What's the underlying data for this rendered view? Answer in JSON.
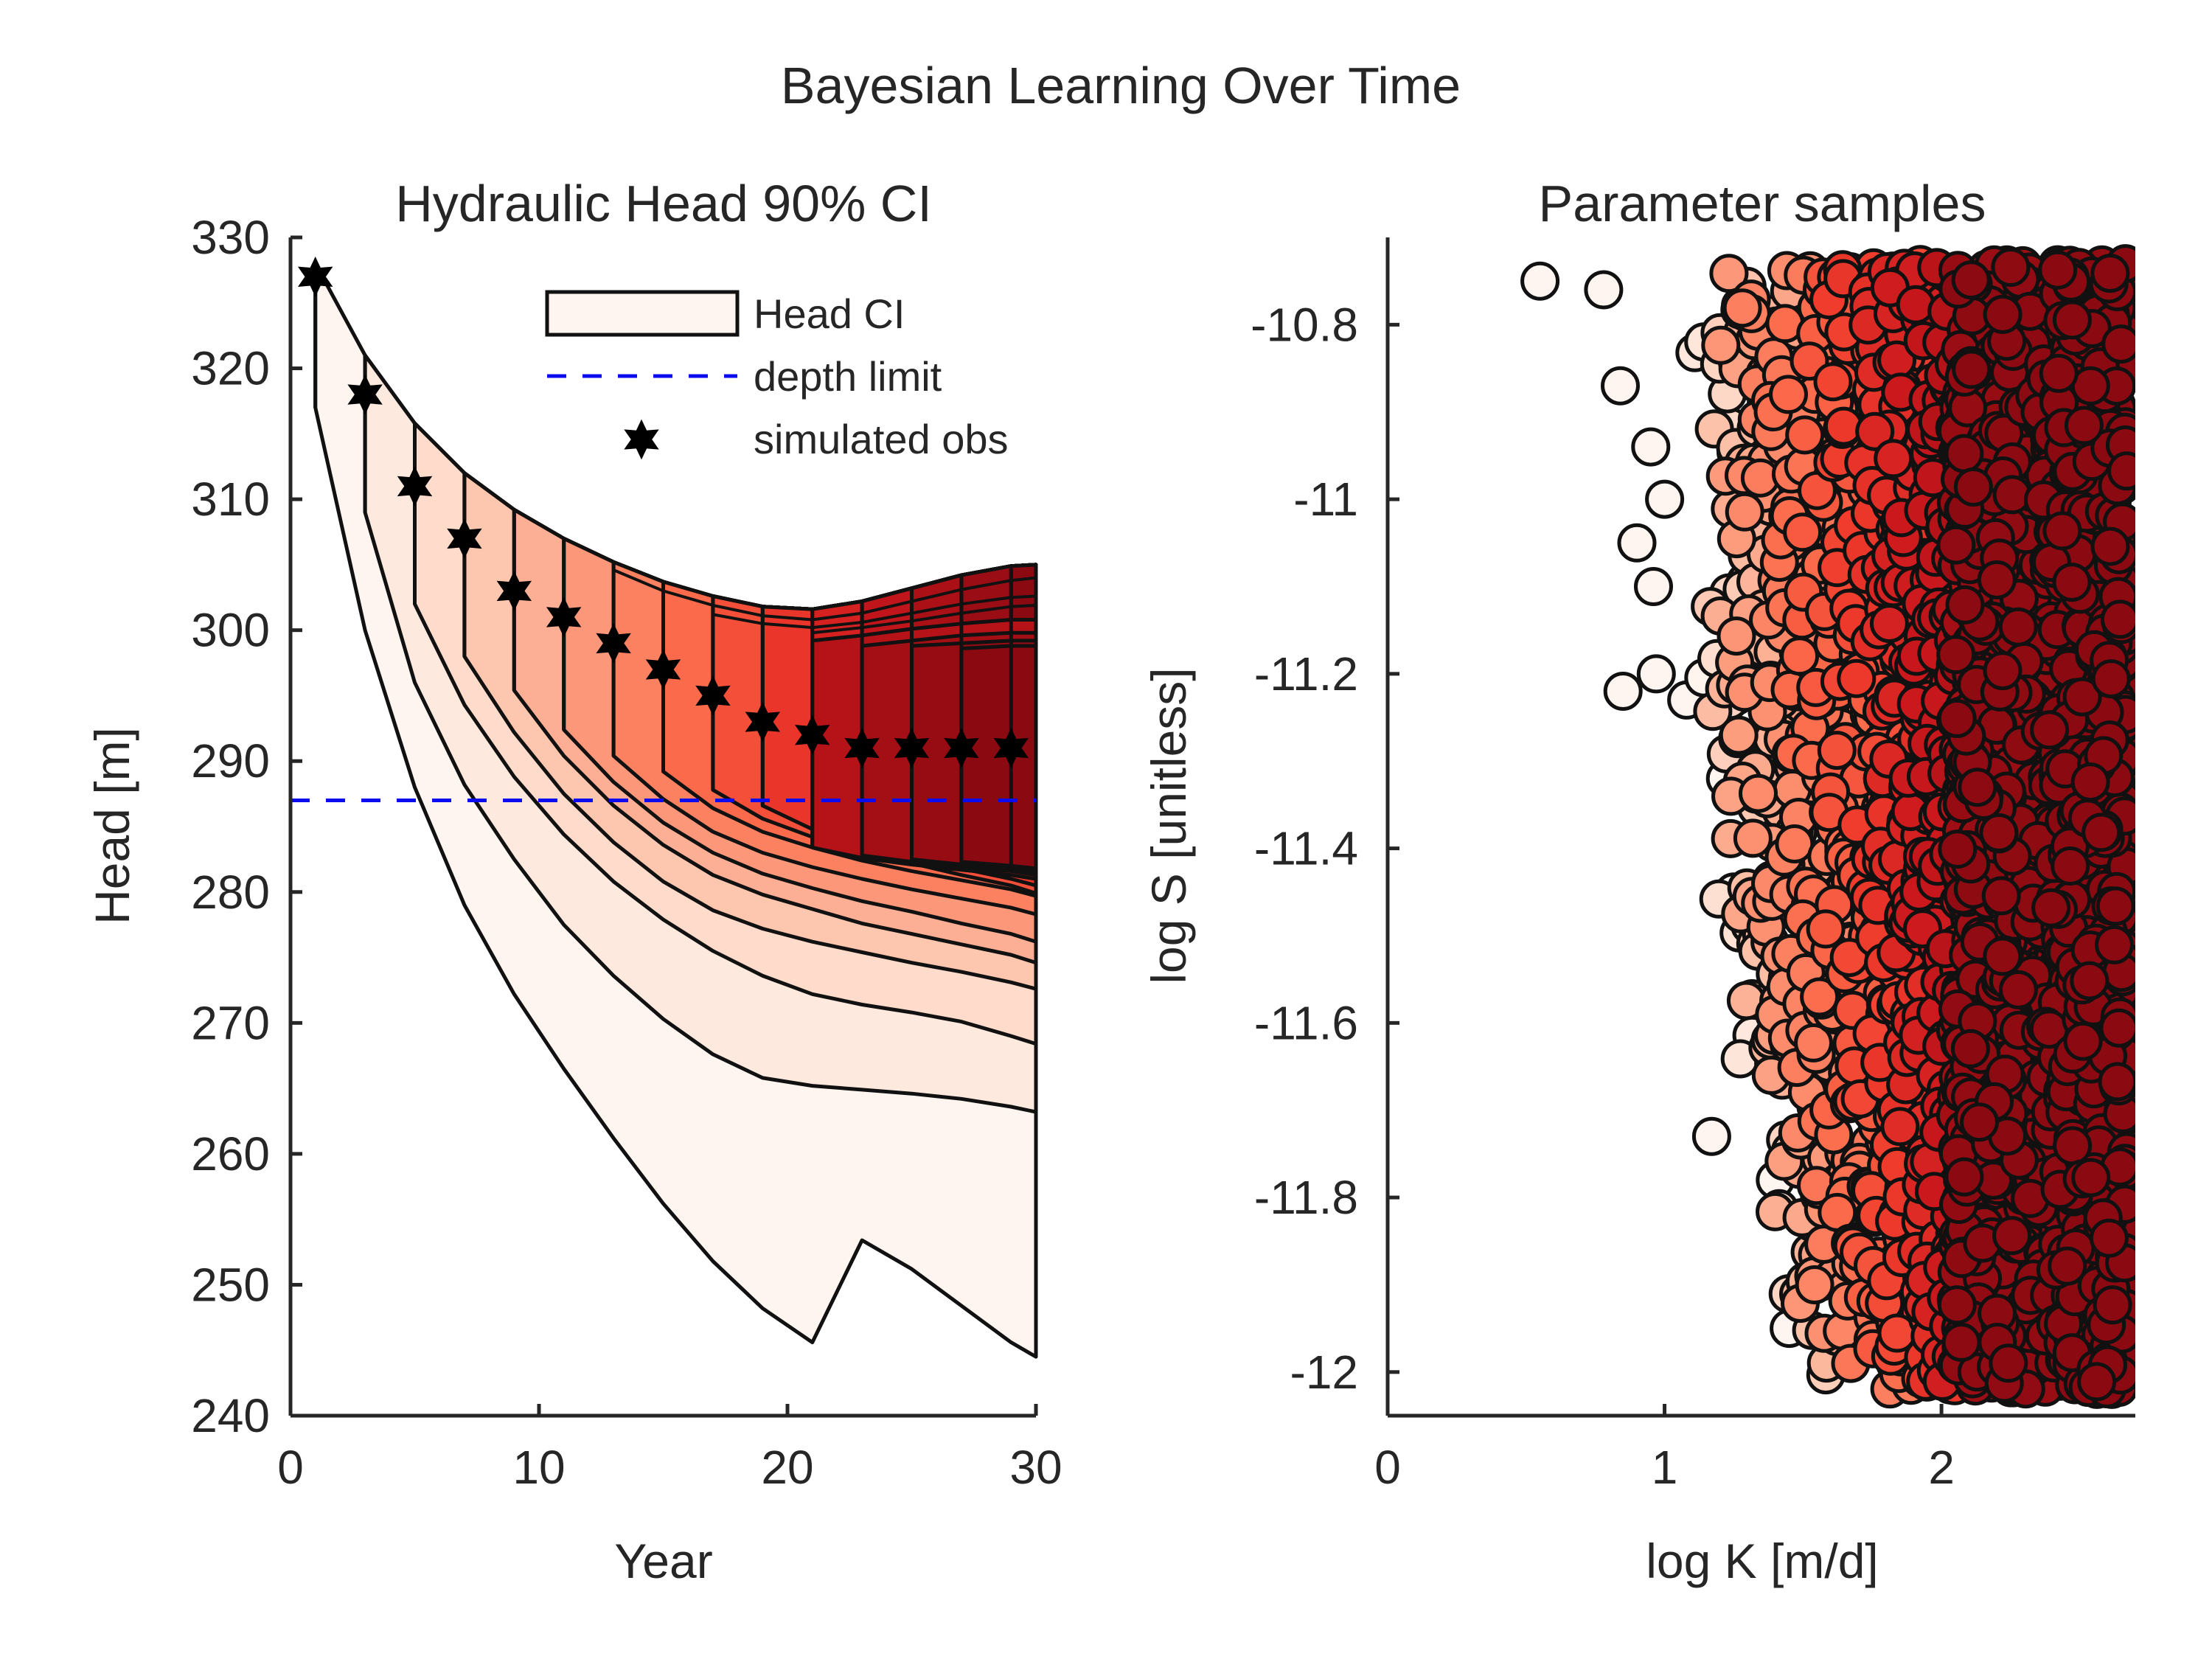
{
  "figure": {
    "suptitle": "Bayesian Learning Over Time"
  },
  "colors": {
    "axis": "#262626",
    "band_edge": "#111111",
    "depth_limit": "#0b0bf0",
    "observation": "#000000",
    "palette_light": "#fff5f0",
    "palette_dark": "#8b0a12"
  },
  "chart_data": [
    {
      "type": "area",
      "title": "Hydraulic Head 90% CI",
      "xlabel": "Year",
      "ylabel": "Head [m]",
      "xlim": [
        0,
        30
      ],
      "ylim": [
        240,
        330
      ],
      "xticks": [
        0,
        10,
        20,
        30
      ],
      "xtick_labels": [
        "0",
        "10",
        "20",
        "30"
      ],
      "yticks": [
        240,
        250,
        260,
        270,
        280,
        290,
        300,
        310,
        320,
        330
      ],
      "ytick_labels": [
        "240",
        "250",
        "260",
        "270",
        "280",
        "290",
        "300",
        "310",
        "320",
        "330"
      ],
      "grid": false,
      "legend": {
        "position": "top-right",
        "entries": [
          "Head CI",
          "depth limit",
          "simulated obs"
        ]
      },
      "depth_limit": 287,
      "upper_bound": {
        "x": [
          1,
          3,
          5,
          7,
          9,
          11,
          13,
          15,
          17,
          19,
          21,
          23,
          25,
          27,
          29,
          30
        ],
        "y": [
          328,
          321,
          315.8,
          312,
          309.2,
          307,
          305.2,
          303.7,
          302.6,
          301.8,
          301.6,
          302.2,
          303.2,
          304.2,
          304.9,
          305
        ]
      },
      "band_lower_bounds": [
        {
          "start": 1,
          "x": [
            1,
            3,
            5,
            7,
            9,
            11,
            13,
            15,
            17,
            19,
            21,
            23,
            25,
            27,
            29,
            30
          ],
          "y": [
            317,
            300,
            288,
            279,
            272.2,
            266.5,
            261.2,
            256.2,
            251.8,
            248.2,
            245.6,
            253.4,
            251.2,
            248.4,
            245.6,
            244.5
          ]
        },
        {
          "start": 3,
          "x": [
            3,
            5,
            7,
            9,
            11,
            13,
            15,
            17,
            19,
            21,
            23,
            25,
            27,
            29,
            30
          ],
          "y": [
            309,
            296,
            288.2,
            282.5,
            277.5,
            273.6,
            270.3,
            267.6,
            265.8,
            265.2,
            264.9,
            264.6,
            264.2,
            263.6,
            263.2
          ]
        },
        {
          "start": 5,
          "x": [
            5,
            7,
            9,
            11,
            13,
            15,
            17,
            19,
            21,
            23,
            25,
            27,
            29,
            30
          ],
          "y": [
            302,
            294.3,
            288.8,
            284.4,
            280.8,
            277.9,
            275.5,
            273.6,
            272.2,
            271.4,
            270.8,
            270.1,
            269,
            268.4
          ]
        },
        {
          "start": 7,
          "x": [
            7,
            9,
            11,
            13,
            15,
            17,
            19,
            21,
            23,
            25,
            27,
            29,
            30
          ],
          "y": [
            298,
            292.2,
            287.5,
            283.8,
            280.8,
            278.6,
            277.2,
            276.2,
            275.4,
            274.6,
            273.9,
            273.1,
            272.6
          ]
        },
        {
          "start": 9,
          "x": [
            9,
            11,
            13,
            15,
            17,
            19,
            21,
            23,
            25,
            27,
            29,
            30
          ],
          "y": [
            295.4,
            290.4,
            286.6,
            283.6,
            281.3,
            279.8,
            278.7,
            277.6,
            276.8,
            276,
            275.2,
            274.6
          ]
        },
        {
          "start": 11,
          "x": [
            11,
            13,
            15,
            17,
            19,
            21,
            23,
            25,
            27,
            29,
            30
          ],
          "y": [
            292.4,
            288.4,
            285.3,
            283,
            281.4,
            280.3,
            279.3,
            278.5,
            277.6,
            276.8,
            276.2
          ]
        },
        {
          "start": 13,
          "x": [
            13,
            15,
            17,
            19,
            21,
            23,
            25,
            27,
            29,
            30
          ],
          "y": [
            290.4,
            287.1,
            284.6,
            283,
            281.9,
            281,
            280.2,
            279.5,
            278.8,
            278.3
          ]
        },
        {
          "start": 15,
          "x": [
            15,
            17,
            19,
            21,
            23,
            25,
            27,
            29,
            30
          ],
          "y": [
            289.2,
            286.4,
            284.6,
            283.4,
            282.4,
            281.6,
            280.9,
            280.2,
            279.7
          ]
        },
        {
          "start": 17,
          "x": [
            17,
            19,
            21,
            23,
            25,
            27,
            29,
            30
          ],
          "y": [
            287.8,
            285.6,
            284.2,
            283.1,
            282.2,
            281.3,
            280.5,
            279.9
          ]
        },
        {
          "start": 19,
          "x": [
            19,
            21,
            23,
            25,
            27,
            29,
            30
          ],
          "y": [
            286.6,
            284.8,
            283.6,
            282.6,
            281.8,
            281,
            280.5
          ]
        },
        {
          "start": 21,
          "x": [
            21,
            23,
            25,
            27,
            29,
            30
          ],
          "y": [
            283.4,
            282.6,
            282.1,
            281.7,
            281.3,
            281
          ]
        },
        {
          "start": 23,
          "x": [
            23,
            25,
            27,
            29,
            30
          ],
          "y": [
            282.8,
            282.3,
            281.9,
            281.6,
            281.3
          ]
        },
        {
          "start": 25,
          "x": [
            25,
            27,
            29,
            30
          ],
          "y": [
            282.5,
            282.1,
            281.8,
            281.5
          ]
        },
        {
          "start": 27,
          "x": [
            27,
            29,
            30
          ],
          "y": [
            282.3,
            282,
            281.8
          ]
        },
        {
          "start": 29,
          "x": [
            29,
            30
          ],
          "y": [
            282.1,
            282
          ]
        }
      ],
      "inner_upper_bounds": [
        {
          "x": [
            21,
            23,
            25,
            27,
            29,
            30
          ],
          "y": [
            299.2,
            299.6,
            300.1,
            300.5,
            300.8,
            300.8
          ]
        },
        {
          "x": [
            23,
            25,
            27,
            29,
            30
          ],
          "y": [
            298.8,
            299.2,
            299.6,
            299.8,
            299.8
          ]
        },
        {
          "x": [
            25,
            27,
            29,
            30
          ],
          "y": [
            298.8,
            299,
            299.2,
            299.2
          ]
        },
        {
          "x": [
            27,
            29,
            30
          ],
          "y": [
            298.6,
            298.8,
            298.8
          ]
        }
      ],
      "upper_inner_lines": [
        {
          "x": [
            13,
            15,
            17,
            19,
            21,
            23,
            25,
            27,
            29,
            30
          ],
          "y": [
            304.6,
            303,
            301.9,
            301.1,
            300.8,
            301.3,
            302.2,
            303.1,
            303.8,
            304
          ]
        },
        {
          "x": [
            17,
            19,
            21,
            23,
            25,
            27,
            29,
            30
          ],
          "y": [
            301.2,
            300.5,
            300.2,
            300.6,
            301.3,
            302,
            302.5,
            302.6
          ]
        },
        {
          "x": [
            21,
            23,
            25,
            27,
            29,
            30
          ],
          "y": [
            299.8,
            300.2,
            300.7,
            301.3,
            301.8,
            301.9
          ]
        }
      ],
      "simulated_obs": {
        "x": [
          1,
          3,
          5,
          7,
          9,
          11,
          13,
          15,
          17,
          19,
          21,
          23,
          25,
          27,
          29
        ],
        "y": [
          327,
          318,
          311,
          307,
          303,
          301,
          299,
          297,
          295,
          293,
          292,
          291,
          291,
          291,
          291
        ]
      }
    },
    {
      "type": "scatter",
      "title": "Parameter samples",
      "xlabel": "log K [m/d]",
      "ylabel": "log S [unitless]",
      "xlim": [
        0,
        2.7
      ],
      "ylim": [
        -12.05,
        -10.7
      ],
      "xticks": [
        0,
        1,
        2
      ],
      "xtick_labels": [
        "0",
        "1",
        "2"
      ],
      "yticks": [
        -12,
        -11.8,
        -11.6,
        -11.4,
        -11.2,
        -11,
        -10.8
      ],
      "ytick_labels": [
        "-12",
        "-11.8",
        "-11.6",
        "-11.4",
        "-11.2",
        "-11",
        "-10.8"
      ],
      "grid": false,
      "color_meaning": "sample iteration, light = early, dark = late",
      "outliers": [
        {
          "x": 0.55,
          "y": -10.75,
          "level": 0
        },
        {
          "x": 0.78,
          "y": -10.76,
          "level": 0
        },
        {
          "x": 0.84,
          "y": -10.87,
          "level": 0
        },
        {
          "x": 0.85,
          "y": -11.22,
          "level": 0
        },
        {
          "x": 0.97,
          "y": -11.2,
          "level": 0
        },
        {
          "x": 1.08,
          "y": -11.23,
          "level": 0
        },
        {
          "x": 0.9,
          "y": -11.05,
          "level": 0
        },
        {
          "x": 0.95,
          "y": -10.94,
          "level": 0
        },
        {
          "x": 1.0,
          "y": -11.0,
          "level": 0
        },
        {
          "x": 0.96,
          "y": -11.1,
          "level": 0
        },
        {
          "x": 1.17,
          "y": -11.73,
          "level": 0
        },
        {
          "x": 1.4,
          "y": -11.78,
          "level": 0
        },
        {
          "x": 1.45,
          "y": -11.95,
          "level": 0
        },
        {
          "x": 1.22,
          "y": -11.32,
          "level": 0
        },
        {
          "x": 1.25,
          "y": -11.45,
          "level": 0
        }
      ],
      "bulk_envelope": {
        "y": [
          -10.73,
          -10.9,
          -11.1,
          -11.3,
          -11.5,
          -11.7,
          -11.9,
          -12.02
        ],
        "left_edge_x": [
          1.05,
          1.08,
          1.12,
          1.16,
          1.2,
          1.28,
          1.38,
          1.44
        ],
        "right_edge_x": 2.67
      },
      "sample_count": 4000
    }
  ]
}
